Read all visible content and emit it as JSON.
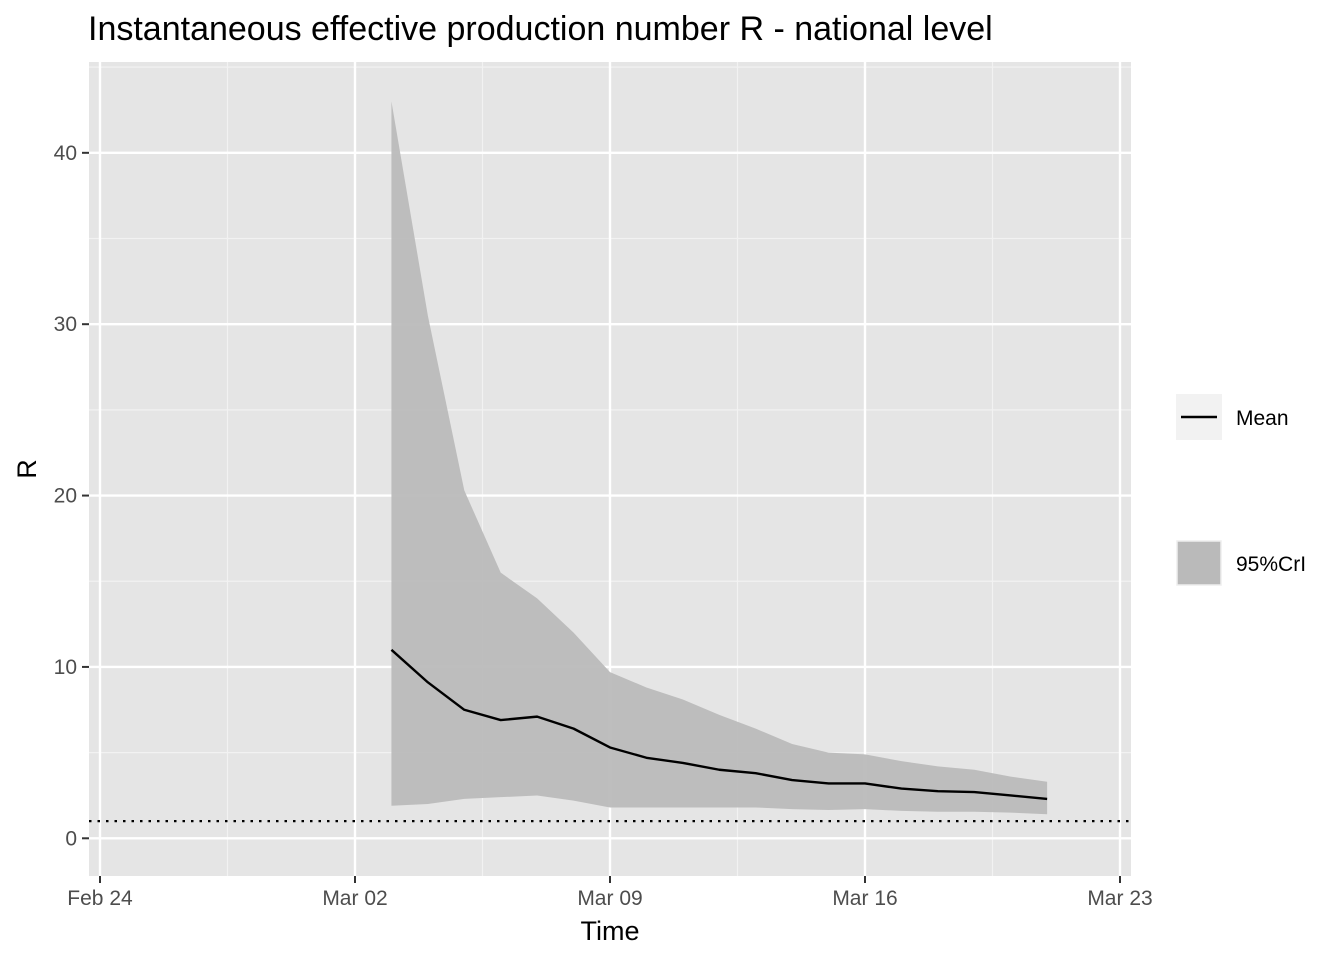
{
  "chart_data": {
    "type": "line",
    "title": "Instantaneous effective production number R - national level",
    "xlabel": "Time",
    "ylabel": "R",
    "x_tick_labels": [
      "Feb 24",
      "Mar 02",
      "Mar 09",
      "Mar 16",
      "Mar 23"
    ],
    "y_tick_labels": [
      "0",
      "10",
      "20",
      "30",
      "40"
    ],
    "ylim": [
      -2.2,
      45.3
    ],
    "xlim": [
      "2020-02-23",
      "2020-03-23"
    ],
    "grid": true,
    "legend_position": "right",
    "reference_line": {
      "y": 1,
      "style": "dotted"
    },
    "x": [
      "2020-03-03",
      "2020-03-04",
      "2020-03-05",
      "2020-03-06",
      "2020-03-07",
      "2020-03-08",
      "2020-03-09",
      "2020-03-10",
      "2020-03-11",
      "2020-03-12",
      "2020-03-13",
      "2020-03-14",
      "2020-03-15",
      "2020-03-16",
      "2020-03-17",
      "2020-03-18",
      "2020-03-19",
      "2020-03-20",
      "2020-03-21"
    ],
    "series": [
      {
        "name": "Mean",
        "kind": "line",
        "color": "#000000",
        "values": [
          11.0,
          9.1,
          7.5,
          6.9,
          7.1,
          6.4,
          5.3,
          4.7,
          4.4,
          4.0,
          3.8,
          3.4,
          3.2,
          3.2,
          2.9,
          2.75,
          2.7,
          2.5,
          2.3
        ]
      },
      {
        "name": "95%CrI",
        "kind": "band",
        "color": "#bababa",
        "lower": [
          1.9,
          2.0,
          2.3,
          2.4,
          2.5,
          2.2,
          1.8,
          1.8,
          1.8,
          1.8,
          1.8,
          1.7,
          1.65,
          1.7,
          1.6,
          1.55,
          1.55,
          1.5,
          1.4
        ],
        "upper": [
          43.0,
          30.5,
          20.3,
          15.5,
          14.0,
          12.0,
          9.7,
          8.8,
          8.1,
          7.2,
          6.4,
          5.5,
          5.0,
          4.9,
          4.5,
          4.2,
          4.0,
          3.6,
          3.3
        ]
      }
    ]
  }
}
